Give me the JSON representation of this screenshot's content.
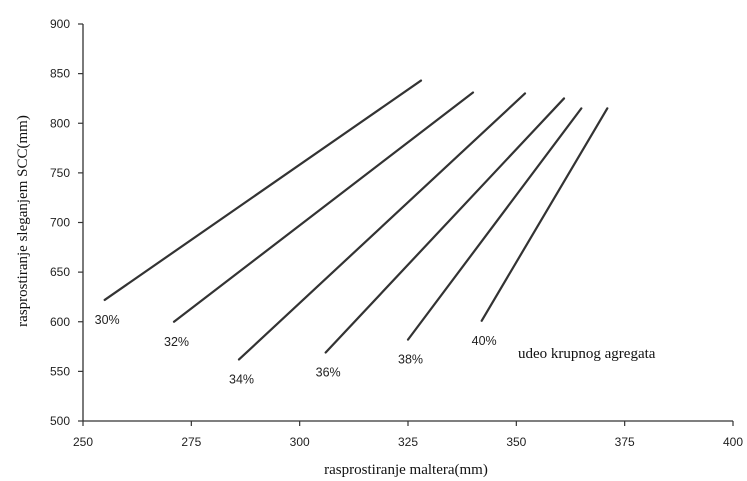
{
  "chart_data": {
    "type": "line",
    "xlabel": "rasprostiranje maltera(mm)",
    "ylabel": "rasprostiranje sleganjem SCC(mm)",
    "xlim": [
      250,
      400
    ],
    "ylim": [
      500,
      900
    ],
    "x_ticks": [
      250,
      275,
      300,
      325,
      350,
      375,
      400
    ],
    "y_ticks": [
      500,
      550,
      600,
      650,
      700,
      750,
      800,
      850,
      900
    ],
    "grid": false,
    "legend": "none",
    "annotation": "udeo krupnog agregata",
    "series": [
      {
        "name": "30%",
        "x": [
          255,
          328
        ],
        "y": [
          622,
          843
        ]
      },
      {
        "name": "32%",
        "x": [
          271,
          340
        ],
        "y": [
          600,
          831
        ]
      },
      {
        "name": "34%",
        "x": [
          286,
          352
        ],
        "y": [
          562,
          830
        ]
      },
      {
        "name": "36%",
        "x": [
          306,
          361
        ],
        "y": [
          569,
          825
        ]
      },
      {
        "name": "38%",
        "x": [
          325,
          365
        ],
        "y": [
          582,
          815
        ]
      },
      {
        "name": "40%",
        "x": [
          342,
          371
        ],
        "y": [
          601,
          815
        ]
      }
    ]
  }
}
